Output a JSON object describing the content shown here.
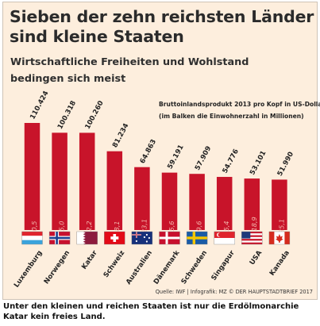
{
  "title": "Sieben der zehn reichsten Länder\nsind kleine Staaten",
  "subtitle": "Wirtschaftliche Freiheiten und Wohlstand\nbedingen sich meist",
  "legend_note": "Bruttoinlandsprodukt 2013 pro Kopf in US-Dollar\n(im Balken die Einwohnerzahl in Millionen)",
  "source": "Quelle: IWF  |  Infografik: MZ © DER HAUPTSTADTBRIEF 2017",
  "caption": "Unter den kleinen und reichen Staaten ist nur die Erdölmonarchie Katar kein freies Land.",
  "colors": {
    "bar": "#c8142a",
    "background": "#fdeedd",
    "inner_label": "#f3b6ac",
    "text": "#2b2b2b"
  },
  "chart_data": {
    "type": "bar",
    "title": "Sieben der zehn reichsten Länder sind kleine Staaten",
    "categories": [
      "Luxemburg",
      "Norwegen",
      "Katar",
      "Schweiz",
      "Australien",
      "Dänemark",
      "Schweden",
      "Singapur",
      "USA",
      "Kanada"
    ],
    "values": [
      110424,
      100318,
      100260,
      81234,
      64863,
      59191,
      57909,
      54776,
      53101,
      51990
    ],
    "value_labels": [
      "110.424",
      "100.318",
      "100.260",
      "81.234",
      "64.863",
      "59.191",
      "57.909",
      "54.776",
      "53.101",
      "51.990"
    ],
    "population_labels": [
      "0,5",
      "5,0",
      "2,2",
      "8,1",
      "23,1",
      "5,6",
      "9,6",
      "5,4",
      "318,9",
      "35,1"
    ],
    "flag_icons": [
      "luxembourg-flag-icon",
      "norway-flag-icon",
      "qatar-flag-icon",
      "switzerland-flag-icon",
      "australia-flag-icon",
      "denmark-flag-icon",
      "sweden-flag-icon",
      "singapore-flag-icon",
      "usa-flag-icon",
      "canada-flag-icon"
    ],
    "ylabel": "Bruttoinlandsprodukt 2013 pro Kopf in US-Dollar",
    "ylim": [
      0,
      110424
    ],
    "grid": false
  }
}
